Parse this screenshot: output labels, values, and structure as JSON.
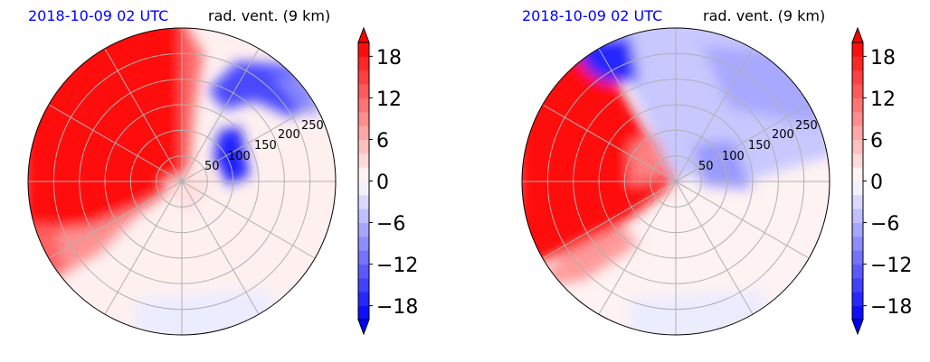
{
  "chart_data": [
    {
      "type": "heatmap",
      "projection": "polar",
      "title_left": "2018-10-09 02 UTC",
      "title_right": "rad. vent. (9 km)",
      "range_ring_labels": [
        "50",
        "100",
        "150",
        "200",
        "250"
      ],
      "colorbar": {
        "ticks": [
          18,
          12,
          6,
          0,
          -6,
          -12,
          -18
        ],
        "tick_labels": [
          "18",
          "12",
          "6",
          "0",
          "−6",
          "−12",
          "−18"
        ],
        "range": [
          -20,
          20
        ],
        "step": 2,
        "extend": "both",
        "cmap": "bwr"
      },
      "regions": [
        {
          "sector": "west-northwest",
          "value": 20
        },
        {
          "sector": "southwest",
          "value": 8
        },
        {
          "sector": "northeast",
          "value": -12
        },
        {
          "sector": "southeast",
          "value": 1
        }
      ]
    },
    {
      "type": "heatmap",
      "projection": "polar",
      "title_left": "2018-10-09 02 UTC",
      "title_right": "rad. vent. (9 km)",
      "range_ring_labels": [
        "50",
        "100",
        "150",
        "200",
        "250"
      ],
      "colorbar": {
        "ticks": [
          18,
          12,
          6,
          0,
          -6,
          -12,
          -18
        ],
        "tick_labels": [
          "18",
          "12",
          "6",
          "0",
          "−6",
          "−12",
          "−18"
        ],
        "range": [
          -20,
          20
        ],
        "step": 2,
        "extend": "both",
        "cmap": "bwr"
      },
      "regions": [
        {
          "sector": "west",
          "value": 20
        },
        {
          "sector": "north-northeast",
          "value": -6
        },
        {
          "sector": "south-southeast",
          "value": 1
        }
      ]
    }
  ]
}
